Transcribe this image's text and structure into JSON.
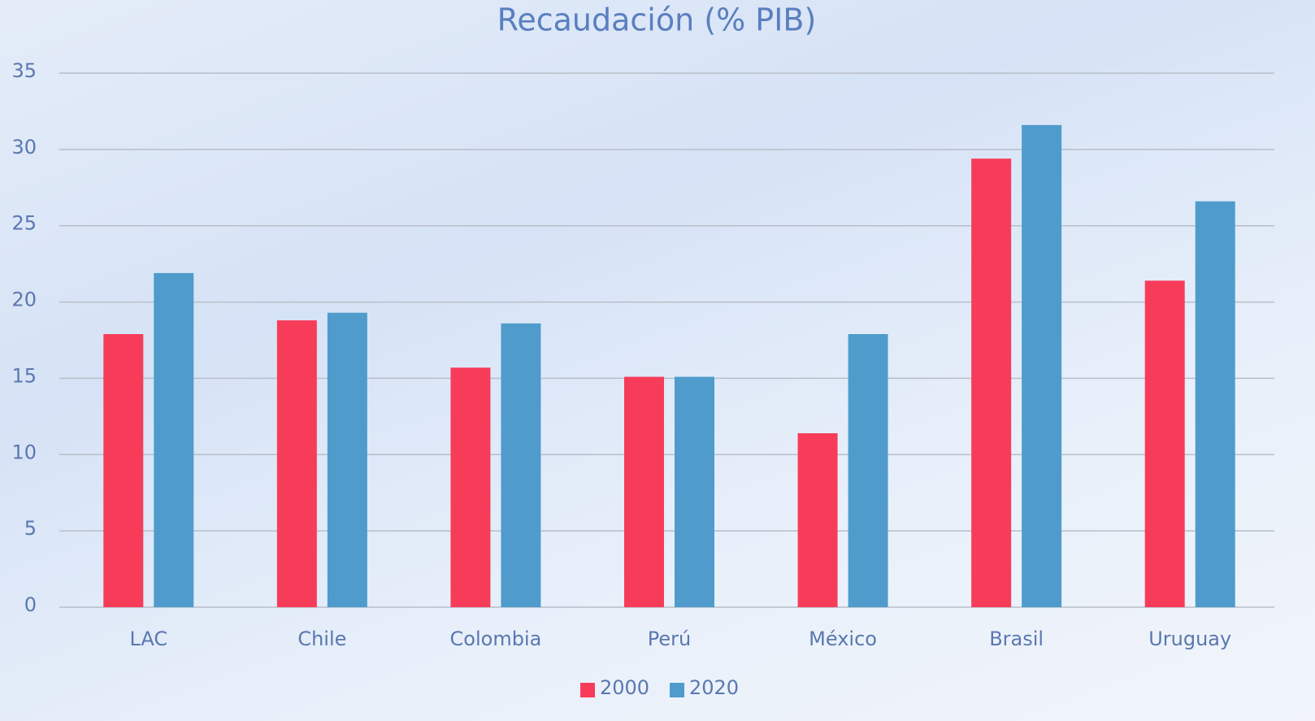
{
  "chart_data": {
    "type": "bar",
    "title": "Recaudación (% PIB)",
    "categories": [
      "LAC",
      "Chile",
      "Colombia",
      "Perú",
      "México",
      "Brasil",
      "Uruguay"
    ],
    "series": [
      {
        "name": "2000",
        "color": "#f73c5a",
        "values": [
          17.9,
          18.8,
          15.7,
          15.1,
          11.4,
          29.4,
          21.4
        ]
      },
      {
        "name": "2020",
        "color": "#4f9ccc",
        "values": [
          21.9,
          19.3,
          18.6,
          15.1,
          17.9,
          31.6,
          26.6
        ]
      }
    ],
    "ylim": [
      0,
      35
    ],
    "yticks": [
      0,
      5,
      10,
      15,
      20,
      25,
      30,
      35
    ],
    "grid": true,
    "legend": "bottom"
  }
}
